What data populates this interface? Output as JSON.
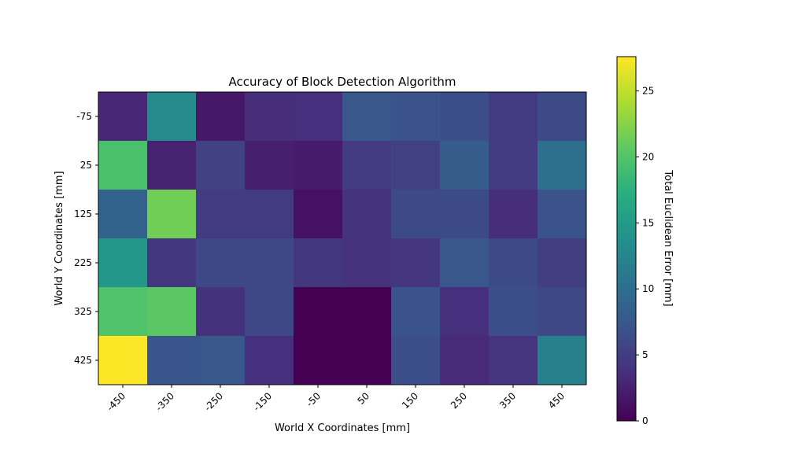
{
  "chart_data": {
    "type": "heatmap",
    "title": "Accuracy of Block Detection Algorithm",
    "xlabel": "World X Coordinates [mm]",
    "ylabel": "World Y Coordinates [mm]",
    "x": [
      "-450",
      "-350",
      "-250",
      "-150",
      "-50",
      "50",
      "150",
      "250",
      "350",
      "450"
    ],
    "y": [
      "-75",
      "25",
      "125",
      "225",
      "325",
      "425"
    ],
    "values": [
      [
        3.0,
        13.0,
        1.8,
        3.5,
        3.6,
        7.5,
        7.0,
        6.5,
        4.8,
        6.2
      ],
      [
        19.5,
        2.6,
        5.3,
        2.4,
        2.0,
        4.8,
        5.2,
        8.0,
        4.8,
        10.0
      ],
      [
        8.7,
        21.5,
        4.8,
        4.8,
        1.3,
        4.0,
        6.2,
        6.2,
        3.5,
        7.0
      ],
      [
        14.5,
        4.5,
        6.0,
        6.0,
        4.5,
        4.0,
        4.3,
        7.5,
        6.2,
        5.0
      ],
      [
        19.8,
        20.5,
        3.8,
        6.0,
        0.0,
        0.0,
        7.0,
        3.6,
        6.5,
        6.0
      ],
      [
        27.5,
        7.2,
        7.5,
        3.6,
        0.0,
        0.0,
        6.5,
        3.2,
        4.2,
        12.0
      ]
    ],
    "colorbar": {
      "label": "Total Euclidean Error [mm]",
      "range": [
        0,
        27.6
      ],
      "ticks": [
        "0",
        "5",
        "10",
        "15",
        "20",
        "25"
      ],
      "colormap": "viridis"
    },
    "grid": false,
    "legend": "none"
  }
}
